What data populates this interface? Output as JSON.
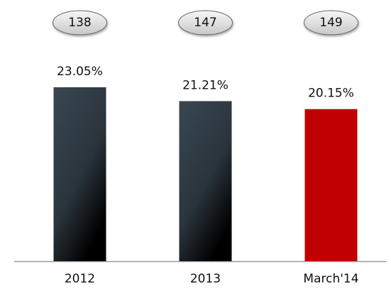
{
  "chart_data": {
    "type": "bar",
    "categories": [
      "2012",
      "2013",
      "March'14"
    ],
    "values": [
      23.05,
      21.21,
      20.15
    ],
    "value_labels": [
      "23.05%",
      "21.21%",
      "20.15%"
    ],
    "colors": [
      "#36434d",
      "#36434d",
      "#c00000"
    ],
    "annotations": [
      138,
      147,
      149
    ],
    "ylim": [
      0,
      30
    ]
  }
}
